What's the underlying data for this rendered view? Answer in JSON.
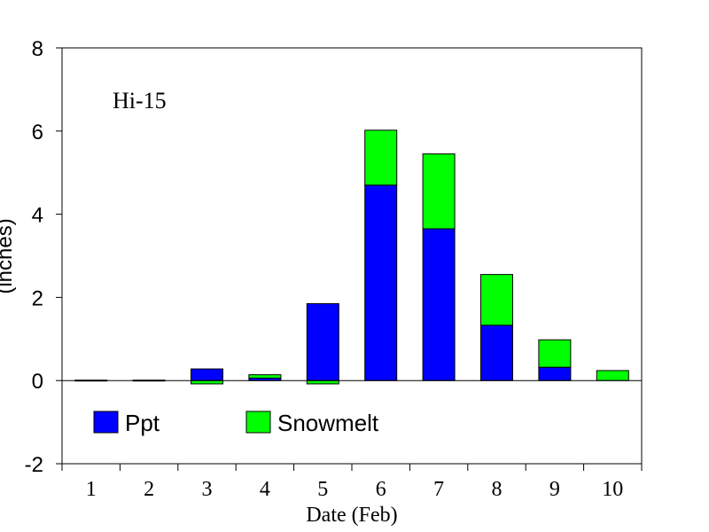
{
  "chart_data": {
    "type": "bar",
    "stacked": true,
    "title": "",
    "annotation": "Hi-15",
    "xlabel": "Date (Feb)",
    "ylabel": "(inches)",
    "categories": [
      "1",
      "2",
      "3",
      "4",
      "5",
      "6",
      "7",
      "8",
      "9",
      "10"
    ],
    "ylim": [
      -2,
      8
    ],
    "yticks": [
      "-2",
      "0",
      "2",
      "4",
      "6",
      "8"
    ],
    "grid": false,
    "legend_position": "bottom-left",
    "series": [
      {
        "name": "Ppt",
        "color": "#0000ff",
        "values": [
          0.01,
          0.01,
          0.28,
          0.06,
          1.85,
          4.7,
          3.65,
          1.33,
          0.32,
          0.0
        ]
      },
      {
        "name": "Snowmelt",
        "color": "#00ff00",
        "values": [
          0.0,
          0.0,
          -0.08,
          0.08,
          -0.08,
          1.32,
          1.8,
          1.22,
          0.66,
          0.24
        ]
      }
    ]
  }
}
